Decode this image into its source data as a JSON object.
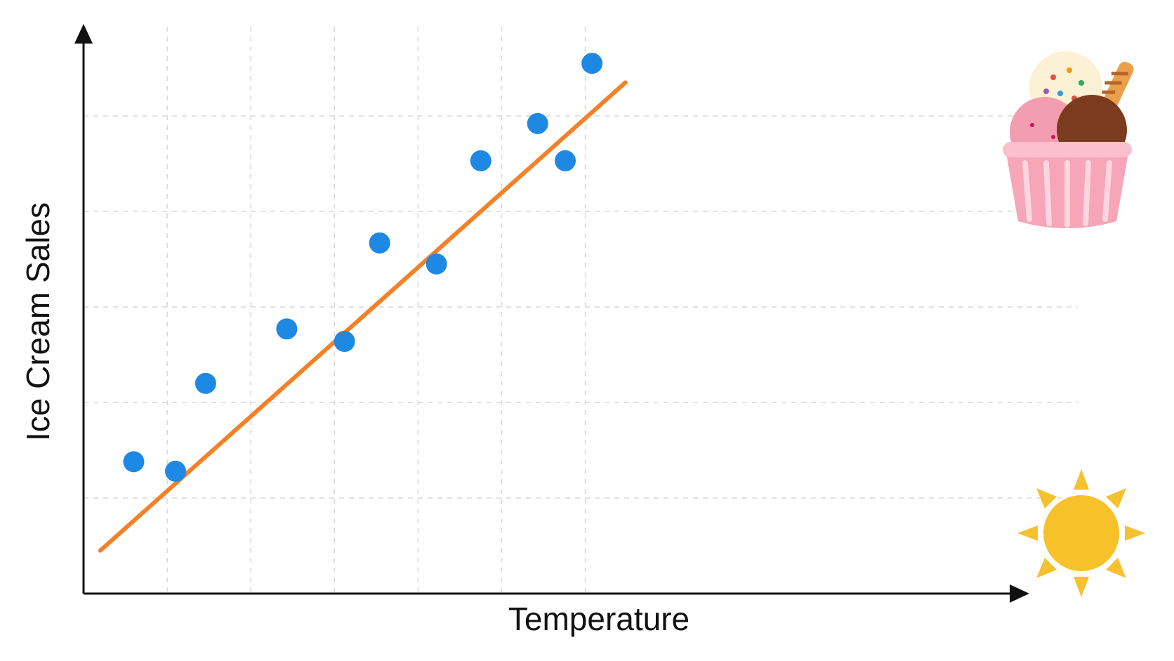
{
  "chart_data": {
    "type": "scatter",
    "title": "",
    "xlabel": "Temperature",
    "ylabel": "Ice Cream Sales",
    "xlim": [
      0,
      10
    ],
    "ylim": [
      0,
      6
    ],
    "grid": true,
    "ticks_labeled": false,
    "points": [
      {
        "x": 0.6,
        "y": 1.38
      },
      {
        "x": 1.1,
        "y": 1.28
      },
      {
        "x": 1.46,
        "y": 2.2
      },
      {
        "x": 2.43,
        "y": 2.77
      },
      {
        "x": 3.12,
        "y": 2.64
      },
      {
        "x": 3.54,
        "y": 3.67
      },
      {
        "x": 4.22,
        "y": 3.45
      },
      {
        "x": 4.75,
        "y": 4.53
      },
      {
        "x": 5.43,
        "y": 4.92
      },
      {
        "x": 5.76,
        "y": 4.53
      },
      {
        "x": 6.08,
        "y": 5.55
      }
    ],
    "trendline": {
      "x": [
        0.2,
        6.48
      ],
      "y": [
        0.45,
        5.35
      ]
    },
    "colors": {
      "points": "#1e88e5",
      "trendline": "#f58025",
      "axis": "#111111",
      "grid": "#d9d9d9"
    },
    "decorations": [
      "ice-cream-cup-icon",
      "sun-icon"
    ]
  }
}
